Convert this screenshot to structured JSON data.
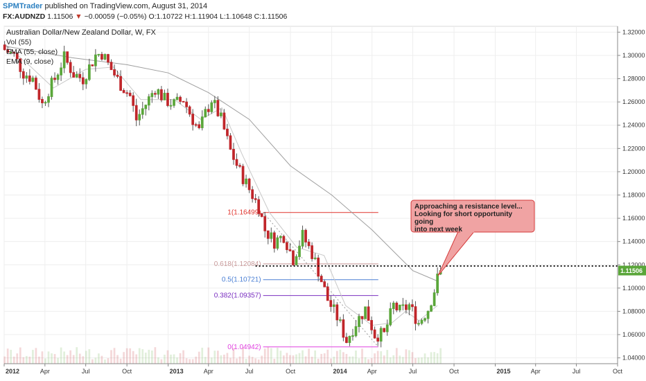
{
  "header": {
    "author": "SPMTrader",
    "published": "published on TradingView.com, August 31, 2014",
    "symbol": "FX:AUDNZD",
    "last": "1.11506",
    "change": "−0.00059 (−0.05%)",
    "open": "O:1.10722",
    "high": "H:1.11904",
    "low": "L:1.10648",
    "close": "C:1.11506"
  },
  "legend": {
    "title": "Australian Dollar/New Zealand Dollar, W, FX",
    "vol": "Vol (55)",
    "ema55": "EMA (55, close)",
    "ema9": "EMA (9, close)"
  },
  "annotation": {
    "line1": "Approaching a resistance level...",
    "line2": "Looking for short opportunity going",
    "line3": "into next week"
  },
  "colors": {
    "up": "#5aa63a",
    "down": "#c0262b",
    "ema": "#9e9e9e",
    "callout_fill": "#f0a3a3",
    "callout_border": "#d43a3a"
  },
  "chart_data": {
    "type": "candlestick",
    "symbol": "FX:AUDNZD",
    "timeframe": "W",
    "x_range": [
      "2012-01",
      "2015-10"
    ],
    "y_range": [
      1.035,
      1.325
    ],
    "x_ticks": [
      "2012",
      "Apr",
      "Jul",
      "Oct",
      "2013",
      "Apr",
      "Jul",
      "Oct",
      "2014",
      "Apr",
      "Jul",
      "Oct",
      "2015",
      "Apr",
      "Jul",
      "Oct"
    ],
    "y_ticks": [
      "1.32000",
      "1.30000",
      "1.28000",
      "1.26000",
      "1.24000",
      "1.22000",
      "1.20000",
      "1.18000",
      "1.16000",
      "1.14000",
      "1.12000",
      "1.10000",
      "1.08000",
      "1.06000",
      "1.04000"
    ],
    "price_label": "1.11506",
    "last_price": 1.11506,
    "price_path": [
      [
        "2012-01-02",
        1.305
      ],
      [
        "2012-01-23",
        1.3
      ],
      [
        "2012-02-13",
        1.285
      ],
      [
        "2012-03-05",
        1.28
      ],
      [
        "2012-03-26",
        1.258
      ],
      [
        "2012-04-09",
        1.27
      ],
      [
        "2012-04-23",
        1.28
      ],
      [
        "2012-05-14",
        1.298
      ],
      [
        "2012-06-04",
        1.284
      ],
      [
        "2012-06-25",
        1.28
      ],
      [
        "2012-07-09",
        1.29
      ],
      [
        "2012-07-23",
        1.3
      ],
      [
        "2012-08-06",
        1.302
      ],
      [
        "2012-08-27",
        1.288
      ],
      [
        "2012-09-17",
        1.275
      ],
      [
        "2012-10-08",
        1.265
      ],
      [
        "2012-10-22",
        1.245
      ],
      [
        "2012-11-12",
        1.258
      ],
      [
        "2012-12-03",
        1.272
      ],
      [
        "2012-12-24",
        1.262
      ],
      [
        "2013-01-14",
        1.258
      ],
      [
        "2013-02-04",
        1.262
      ],
      [
        "2013-02-25",
        1.245
      ],
      [
        "2013-03-11",
        1.235
      ],
      [
        "2013-03-25",
        1.25
      ],
      [
        "2013-04-08",
        1.262
      ],
      [
        "2013-04-29",
        1.245
      ],
      [
        "2013-05-20",
        1.218
      ],
      [
        "2013-06-10",
        1.2
      ],
      [
        "2013-07-01",
        1.185
      ],
      [
        "2013-07-22",
        1.17
      ],
      [
        "2013-08-05",
        1.15
      ],
      [
        "2013-08-26",
        1.14
      ],
      [
        "2013-09-16",
        1.145
      ],
      [
        "2013-10-07",
        1.125
      ],
      [
        "2013-10-28",
        1.145
      ],
      [
        "2013-11-18",
        1.13
      ],
      [
        "2013-12-02",
        1.115
      ],
      [
        "2013-12-23",
        1.09
      ],
      [
        "2014-01-13",
        1.075
      ],
      [
        "2014-02-03",
        1.055
      ],
      [
        "2014-02-24",
        1.07
      ],
      [
        "2014-03-17",
        1.082
      ],
      [
        "2014-04-07",
        1.06
      ],
      [
        "2014-04-28",
        1.06
      ],
      [
        "2014-05-19",
        1.085
      ],
      [
        "2014-06-02",
        1.08
      ],
      [
        "2014-06-23",
        1.085
      ],
      [
        "2014-07-14",
        1.07
      ],
      [
        "2014-08-04",
        1.082
      ],
      [
        "2014-08-18",
        1.098
      ],
      [
        "2014-08-25",
        1.108
      ],
      [
        "2014-09-01",
        1.11506
      ]
    ],
    "ema55_path": [
      [
        "2012-01-02",
        1.308
      ],
      [
        "2012-06-01",
        1.298
      ],
      [
        "2012-10-01",
        1.292
      ],
      [
        "2013-01-01",
        1.285
      ],
      [
        "2013-04-01",
        1.268
      ],
      [
        "2013-07-01",
        1.245
      ],
      [
        "2013-10-01",
        1.205
      ],
      [
        "2014-01-01",
        1.18
      ],
      [
        "2014-04-01",
        1.15
      ],
      [
        "2014-07-01",
        1.115
      ],
      [
        "2014-08-25",
        1.106
      ]
    ],
    "ema9_path": [
      [
        "2012-01-02",
        1.31
      ],
      [
        "2012-03-01",
        1.29
      ],
      [
        "2012-04-20",
        1.272
      ],
      [
        "2012-07-01",
        1.288
      ],
      [
        "2012-09-01",
        1.29
      ],
      [
        "2012-11-01",
        1.262
      ],
      [
        "2013-01-15",
        1.262
      ],
      [
        "2013-03-15",
        1.245
      ],
      [
        "2013-05-01",
        1.255
      ],
      [
        "2013-06-15",
        1.215
      ],
      [
        "2013-08-15",
        1.165
      ],
      [
        "2013-10-15",
        1.135
      ],
      [
        "2013-12-15",
        1.128
      ],
      [
        "2014-02-01",
        1.085
      ],
      [
        "2014-04-01",
        1.068
      ],
      [
        "2014-05-15",
        1.07
      ],
      [
        "2014-06-15",
        1.08
      ],
      [
        "2014-07-15",
        1.072
      ],
      [
        "2014-08-25",
        1.085
      ]
    ],
    "fibonacci": {
      "start_date": "2013-08-01",
      "end_date": "2014-04-15",
      "levels": [
        {
          "label": "1(1.16499)",
          "value": 1.16499,
          "color": "#e0332c"
        },
        {
          "label": "0.618(1.12084)",
          "value": 1.12084,
          "color": "#c99a9a"
        },
        {
          "label": "0.5(1.10721)",
          "value": 1.10721,
          "color": "#4a7fd4"
        },
        {
          "label": "0.382(1.09357)",
          "value": 1.09357,
          "color": "#7a2fc0"
        },
        {
          "label": "0(1.04942)",
          "value": 1.04942,
          "color": "#e040e0"
        }
      ]
    },
    "resistance_line": {
      "value": 1.119,
      "start_date": "2013-07-15",
      "style": "dotted"
    },
    "fib_trend_line": [
      [
        "2013-08-01",
        1.16499
      ],
      [
        "2014-04-15",
        1.04942
      ]
    ]
  }
}
